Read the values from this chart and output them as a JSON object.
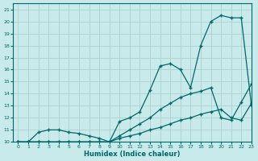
{
  "xlabel": "Humidex (Indice chaleur)",
  "bg_color": "#c8eaea",
  "grid_color": "#b0d4d4",
  "line_color": "#006868",
  "xlim": [
    -0.5,
    23
  ],
  "ylim": [
    10,
    21.5
  ],
  "xticks": [
    0,
    1,
    2,
    3,
    4,
    5,
    6,
    7,
    8,
    9,
    10,
    11,
    12,
    13,
    14,
    15,
    16,
    17,
    18,
    19,
    20,
    21,
    22,
    23
  ],
  "yticks": [
    10,
    11,
    12,
    13,
    14,
    15,
    16,
    17,
    18,
    19,
    20,
    21
  ],
  "line1_x": [
    0,
    1,
    2,
    3,
    4,
    5,
    6,
    7,
    8,
    9,
    10,
    11,
    12,
    13,
    14,
    15,
    16,
    17,
    18,
    19,
    20,
    21,
    22,
    23
  ],
  "line1_y": [
    10,
    10,
    10,
    10,
    10,
    10,
    10,
    10,
    10,
    10,
    11.7,
    12,
    12.5,
    14.3,
    16.3,
    16.5,
    16.0,
    14.5,
    18.0,
    20.0,
    20.5,
    20.3,
    20.3,
    13.0
  ],
  "line2_x": [
    0,
    1,
    2,
    3,
    4,
    5,
    6,
    7,
    8,
    9,
    10,
    11,
    12,
    13,
    14,
    15,
    16,
    17,
    18,
    19,
    20,
    21,
    22,
    23
  ],
  "line2_y": [
    10,
    10,
    10,
    10,
    10,
    10,
    10,
    10,
    10,
    10,
    10.5,
    11,
    11.5,
    12,
    12.7,
    13.2,
    13.7,
    14,
    14.2,
    14.5,
    12.0,
    11.8,
    13.3,
    14.8
  ],
  "line3_x": [
    0,
    1,
    2,
    3,
    4,
    5,
    6,
    7,
    8,
    9,
    10,
    11,
    12,
    13,
    14,
    15,
    16,
    17,
    18,
    19,
    20,
    21,
    22,
    23
  ],
  "line3_y": [
    10,
    10,
    10.8,
    11,
    11,
    10.8,
    10.7,
    10.5,
    10.3,
    10,
    10.3,
    10.5,
    10.7,
    11,
    11.2,
    11.5,
    11.8,
    12,
    12.3,
    12.5,
    12.7,
    12.0,
    11.8,
    13.2
  ]
}
